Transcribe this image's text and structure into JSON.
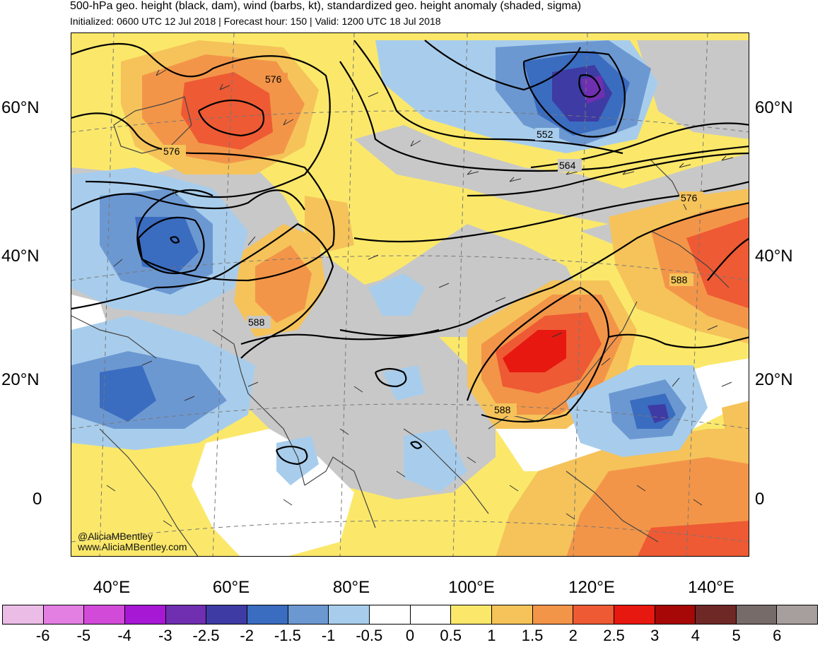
{
  "title": "500-hPa geo. height (black, dam), wind (barbs, kt), standardized geo. height anomaly (shaded, sigma)",
  "subtitle": "Initialized: 0600 UTC 12 Jul 2018 | Forecast hour: 150 | Valid: 1200 UTC 18 Jul 2018",
  "watermark": {
    "handle": "@AliciaMBentley",
    "site": "www.AliciaMBentley.com"
  },
  "lat_labels": [
    "60°N",
    "40°N",
    "20°N",
    "0"
  ],
  "lon_labels": [
    "40°E",
    "60°E",
    "80°E",
    "100°E",
    "120°E",
    "140°E"
  ],
  "contour_labels": [
    "576",
    "576",
    "552",
    "564",
    "576",
    "588",
    "588",
    "588"
  ],
  "colorbar": {
    "labels": [
      "-6",
      "-5",
      "-4",
      "-3",
      "-2.5",
      "-2",
      "-1.5",
      "-1",
      "-0.5",
      "0",
      "0.5",
      "1",
      "1.5",
      "2",
      "2.5",
      "3",
      "4",
      "5",
      "6"
    ],
    "colors": [
      "#ebbce6",
      "#e37fe3",
      "#d24bd8",
      "#a718d4",
      "#6f2fb0",
      "#3e3ba5",
      "#3a6cc0",
      "#6c98d2",
      "#a8cdec",
      "#ffffff",
      "#ffffff",
      "#fbe86a",
      "#f5c35a",
      "#f39548",
      "#ee5a34",
      "#e71810",
      "#a50806",
      "#6e2826",
      "#776b6a",
      "#a79e9e"
    ]
  },
  "shading_colors": {
    "land_neutral": "#c8c8c8",
    "ocean_neutral": "#ffffff",
    "pos_05": "#fbe86a",
    "pos_1": "#f5c35a",
    "pos_15": "#f39548",
    "pos_2": "#ee5a34",
    "pos_25": "#e71810",
    "neg_05": "#a8cdec",
    "neg_1": "#6c98d2",
    "neg_15": "#3a6cc0",
    "neg_2": "#3e3ba5",
    "neg_25": "#6f2fb0"
  }
}
